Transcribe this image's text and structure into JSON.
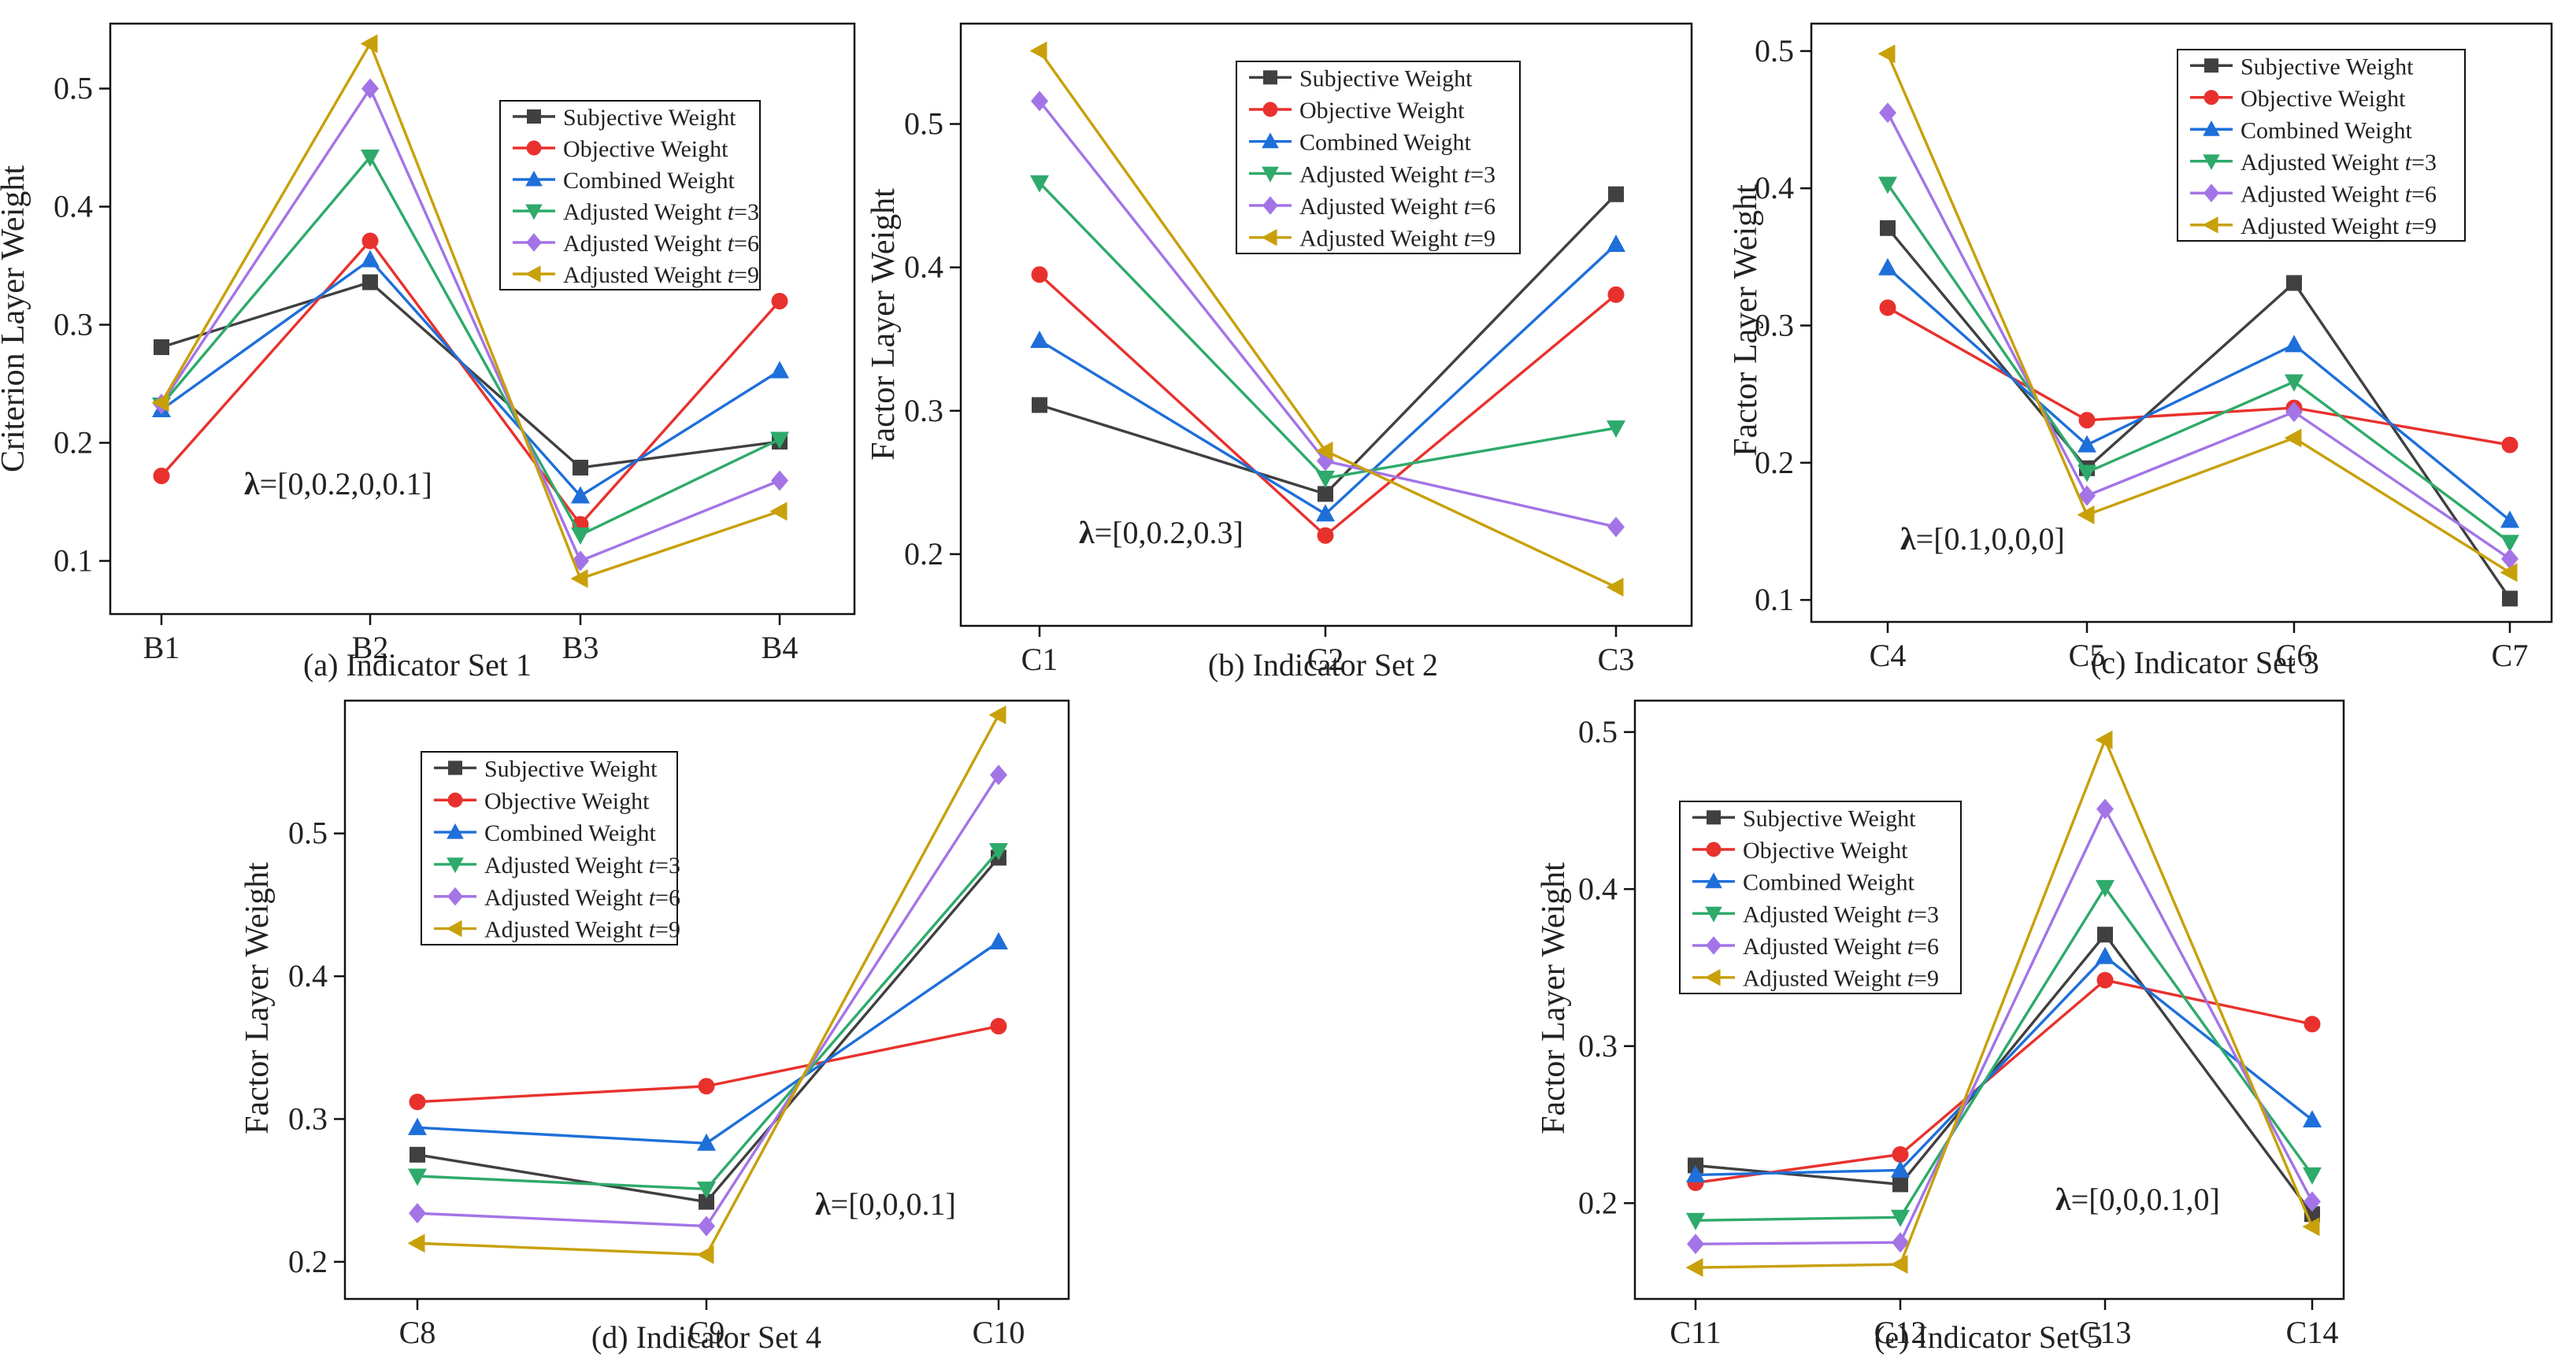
{
  "figure": {
    "layout": "two rows: three panels on top, two panels below"
  },
  "series_styles": [
    {
      "name": "Subjective Weight",
      "color": "#404040",
      "marker": "square"
    },
    {
      "name": "Objective Weight",
      "color": "#e8312d",
      "marker": "circle"
    },
    {
      "name": "Combined Weight",
      "color": "#1e6fd9",
      "marker": "triangle-up"
    },
    {
      "name": "Adjusted Weight t=3",
      "color": "#2eaa6a",
      "marker": "triangle-down"
    },
    {
      "name": "Adjusted Weight t=6",
      "color": "#a374e6",
      "marker": "diamond"
    },
    {
      "name": "Adjusted Weight t=9",
      "color": "#c8a00a",
      "marker": "triangle-left"
    }
  ],
  "chart_data": [
    {
      "type": "line",
      "caption": "(a) Indicator Set 1",
      "ylabel": "Criterion Layer Weight",
      "categories": [
        "B1",
        "B2",
        "B3",
        "B4"
      ],
      "ylim": [
        0.055,
        0.555
      ],
      "yticks": [
        0.1,
        0.2,
        0.3,
        0.4,
        0.5
      ],
      "annotation": {
        "bold": "λ",
        "text": "=[0,0.2,0,0.1]"
      },
      "legend": [
        {
          "prefix": "Subjective Weight",
          "t": "",
          "suffix": ""
        },
        {
          "prefix": "Objective Weight",
          "t": "",
          "suffix": ""
        },
        {
          "prefix": "Combined Weight",
          "t": "",
          "suffix": ""
        },
        {
          "prefix": "Adjusted Weight ",
          "t": "t",
          "suffix": "=3"
        },
        {
          "prefix": "Adjusted Weight ",
          "t": "t",
          "suffix": "=6"
        },
        {
          "prefix": "Adjusted Weight ",
          "t": "t",
          "suffix": "=9"
        }
      ],
      "series": [
        {
          "name": "Subjective Weight",
          "values": [
            0.281,
            0.336,
            0.179,
            0.201
          ]
        },
        {
          "name": "Objective Weight",
          "values": [
            0.172,
            0.371,
            0.131,
            0.32
          ]
        },
        {
          "name": "Combined Weight",
          "values": [
            0.228,
            0.355,
            0.155,
            0.261
          ]
        },
        {
          "name": "Adjusted Weight t=3",
          "values": [
            0.232,
            0.442,
            0.122,
            0.203
          ]
        },
        {
          "name": "Adjusted Weight t=6",
          "values": [
            0.233,
            0.5,
            0.1,
            0.168
          ]
        },
        {
          "name": "Adjusted Weight t=9",
          "values": [
            0.234,
            0.538,
            0.085,
            0.142
          ]
        }
      ]
    },
    {
      "type": "line",
      "caption": "(b) Indicator Set 2",
      "ylabel": "Factor Layer Weight",
      "categories": [
        "C1",
        "C2",
        "C3"
      ],
      "ylim": [
        0.15,
        0.57
      ],
      "yticks": [
        0.2,
        0.3,
        0.4,
        0.5
      ],
      "annotation": {
        "bold": "λ",
        "text": "=[0,0.2,0.3]"
      },
      "legend": [
        {
          "prefix": "Subjective Weight",
          "t": "",
          "suffix": ""
        },
        {
          "prefix": "Objective Weight",
          "t": "",
          "suffix": ""
        },
        {
          "prefix": "Combined Weight",
          "t": "",
          "suffix": ""
        },
        {
          "prefix": "Adjusted Weight ",
          "t": "t",
          "suffix": "=3"
        },
        {
          "prefix": "Adjusted Weight ",
          "t": "t",
          "suffix": "=6"
        },
        {
          "prefix": "Adjusted Weight ",
          "t": "t",
          "suffix": "=9"
        }
      ],
      "series": [
        {
          "name": "Subjective Weight",
          "values": [
            0.304,
            0.242,
            0.451
          ]
        },
        {
          "name": "Objective Weight",
          "values": [
            0.395,
            0.213,
            0.381
          ]
        },
        {
          "name": "Combined Weight",
          "values": [
            0.349,
            0.228,
            0.416
          ]
        },
        {
          "name": "Adjusted Weight t=3",
          "values": [
            0.459,
            0.253,
            0.288
          ]
        },
        {
          "name": "Adjusted Weight t=6",
          "values": [
            0.516,
            0.265,
            0.219
          ]
        },
        {
          "name": "Adjusted Weight t=9",
          "values": [
            0.551,
            0.272,
            0.177
          ]
        }
      ]
    },
    {
      "type": "line",
      "caption": "(c) Indicator Set 3",
      "ylabel": "Factor Layer Weight",
      "categories": [
        "C4",
        "C5",
        "C6",
        "C7"
      ],
      "ylim": [
        0.084,
        0.52
      ],
      "yticks": [
        0.1,
        0.2,
        0.3,
        0.4,
        0.5
      ],
      "annotation": {
        "bold": "λ",
        "text": "=[0.1,0,0,0]"
      },
      "legend": [
        {
          "prefix": "Subjective Weight",
          "t": "",
          "suffix": ""
        },
        {
          "prefix": "Objective Weight",
          "t": "",
          "suffix": ""
        },
        {
          "prefix": "Combined Weight",
          "t": "",
          "suffix": ""
        },
        {
          "prefix": "Adjusted Weight ",
          "t": "t",
          "suffix": "=3"
        },
        {
          "prefix": "Adjusted Weight ",
          "t": "t",
          "suffix": "=6"
        },
        {
          "prefix": "Adjusted Weight ",
          "t": "t",
          "suffix": "=9"
        }
      ],
      "series": [
        {
          "name": "Subjective Weight",
          "values": [
            0.371,
            0.196,
            0.331,
            0.101
          ]
        },
        {
          "name": "Objective Weight",
          "values": [
            0.313,
            0.231,
            0.24,
            0.213
          ]
        },
        {
          "name": "Combined Weight",
          "values": [
            0.342,
            0.213,
            0.286,
            0.158
          ]
        },
        {
          "name": "Adjusted Weight t=3",
          "values": [
            0.403,
            0.193,
            0.259,
            0.142
          ]
        },
        {
          "name": "Adjusted Weight t=6",
          "values": [
            0.455,
            0.176,
            0.237,
            0.13
          ]
        },
        {
          "name": "Adjusted Weight t=9",
          "values": [
            0.498,
            0.162,
            0.218,
            0.12
          ]
        }
      ]
    },
    {
      "type": "line",
      "caption": "(d) Indicator Set 4",
      "ylabel": "Factor Layer Weight",
      "categories": [
        "C8",
        "C9",
        "C10"
      ],
      "ylim": [
        0.174,
        0.593
      ],
      "yticks": [
        0.2,
        0.3,
        0.4,
        0.5
      ],
      "annotation": {
        "bold": "λ",
        "text": "=[0,0,0.1]"
      },
      "legend": [
        {
          "prefix": "Subjective Weight",
          "t": "",
          "suffix": ""
        },
        {
          "prefix": "Objective Weight",
          "t": "",
          "suffix": ""
        },
        {
          "prefix": "Combined Weight",
          "t": "",
          "suffix": ""
        },
        {
          "prefix": "Adjusted Weight ",
          "t": "t",
          "suffix": "=3"
        },
        {
          "prefix": "Adjusted Weight ",
          "t": "t",
          "suffix": "=6"
        },
        {
          "prefix": "Adjusted Weight ",
          "t": "t",
          "suffix": "=9"
        }
      ],
      "series": [
        {
          "name": "Subjective Weight",
          "values": [
            0.275,
            0.242,
            0.483
          ]
        },
        {
          "name": "Objective Weight",
          "values": [
            0.312,
            0.323,
            0.365
          ]
        },
        {
          "name": "Combined Weight",
          "values": [
            0.294,
            0.283,
            0.424
          ]
        },
        {
          "name": "Adjusted Weight t=3",
          "values": [
            0.26,
            0.251,
            0.488
          ]
        },
        {
          "name": "Adjusted Weight t=6",
          "values": [
            0.234,
            0.225,
            0.541
          ]
        },
        {
          "name": "Adjusted Weight t=9",
          "values": [
            0.213,
            0.205,
            0.583
          ]
        }
      ]
    },
    {
      "type": "line",
      "caption": "(e) Indicator Set 5",
      "ylabel": "Factor Layer Weight",
      "categories": [
        "C11",
        "C12",
        "C13",
        "C14"
      ],
      "ylim": [
        0.139,
        0.52
      ],
      "yticks": [
        0.2,
        0.3,
        0.4,
        0.5
      ],
      "annotation": {
        "bold": "λ",
        "text": "=[0,0,0.1,0]"
      },
      "legend": [
        {
          "prefix": "Subjective Weight",
          "t": "",
          "suffix": ""
        },
        {
          "prefix": "Objective Weight",
          "t": "",
          "suffix": ""
        },
        {
          "prefix": "Combined Weight",
          "t": "",
          "suffix": ""
        },
        {
          "prefix": "Adjusted Weight ",
          "t": "t",
          "suffix": "=3"
        },
        {
          "prefix": "Adjusted Weight ",
          "t": "t",
          "suffix": "=6"
        },
        {
          "prefix": "Adjusted Weight ",
          "t": "t",
          "suffix": "=9"
        }
      ],
      "series": [
        {
          "name": "Subjective Weight",
          "values": [
            0.224,
            0.212,
            0.371,
            0.193
          ]
        },
        {
          "name": "Objective Weight",
          "values": [
            0.213,
            0.231,
            0.342,
            0.314
          ]
        },
        {
          "name": "Combined Weight",
          "values": [
            0.218,
            0.221,
            0.357,
            0.253
          ]
        },
        {
          "name": "Adjusted Weight t=3",
          "values": [
            0.189,
            0.191,
            0.401,
            0.218
          ]
        },
        {
          "name": "Adjusted Weight t=6",
          "values": [
            0.174,
            0.175,
            0.451,
            0.201
          ]
        },
        {
          "name": "Adjusted Weight t=9",
          "values": [
            0.159,
            0.161,
            0.495,
            0.185
          ]
        }
      ]
    }
  ]
}
